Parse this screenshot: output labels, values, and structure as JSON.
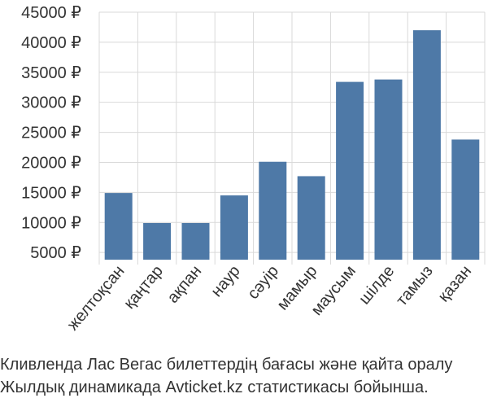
{
  "colors": {
    "bar": "#4e79a7",
    "grid": "#d9d9d9",
    "text": "#333333"
  },
  "caption": {
    "line1": "Кливленда Лас Вегас билеттердің бағасы және қайта оралу",
    "line2": "Жылдық динамикада Avticket.kz статистикасы бойынша."
  },
  "chart_data": {
    "type": "bar",
    "title": "",
    "xlabel": "",
    "ylabel": "",
    "ylim": [
      3800,
      45000
    ],
    "yticks": [
      5000,
      10000,
      15000,
      20000,
      25000,
      30000,
      35000,
      40000,
      45000
    ],
    "ytick_labels": [
      "5000 ₽",
      "10000 ₽",
      "15000 ₽",
      "20000 ₽",
      "25000 ₽",
      "30000 ₽",
      "35000 ₽",
      "40000 ₽",
      "45000 ₽"
    ],
    "categories": [
      "желтоқсан",
      "қаңтар",
      "ақпан",
      "наур",
      "сәуір",
      "мамыр",
      "маусым",
      "шілде",
      "тамыз",
      "қазан"
    ],
    "values": [
      14900,
      9900,
      9900,
      14500,
      20100,
      17700,
      33400,
      33800,
      42000,
      23800
    ],
    "grid": true,
    "legend": "none"
  }
}
